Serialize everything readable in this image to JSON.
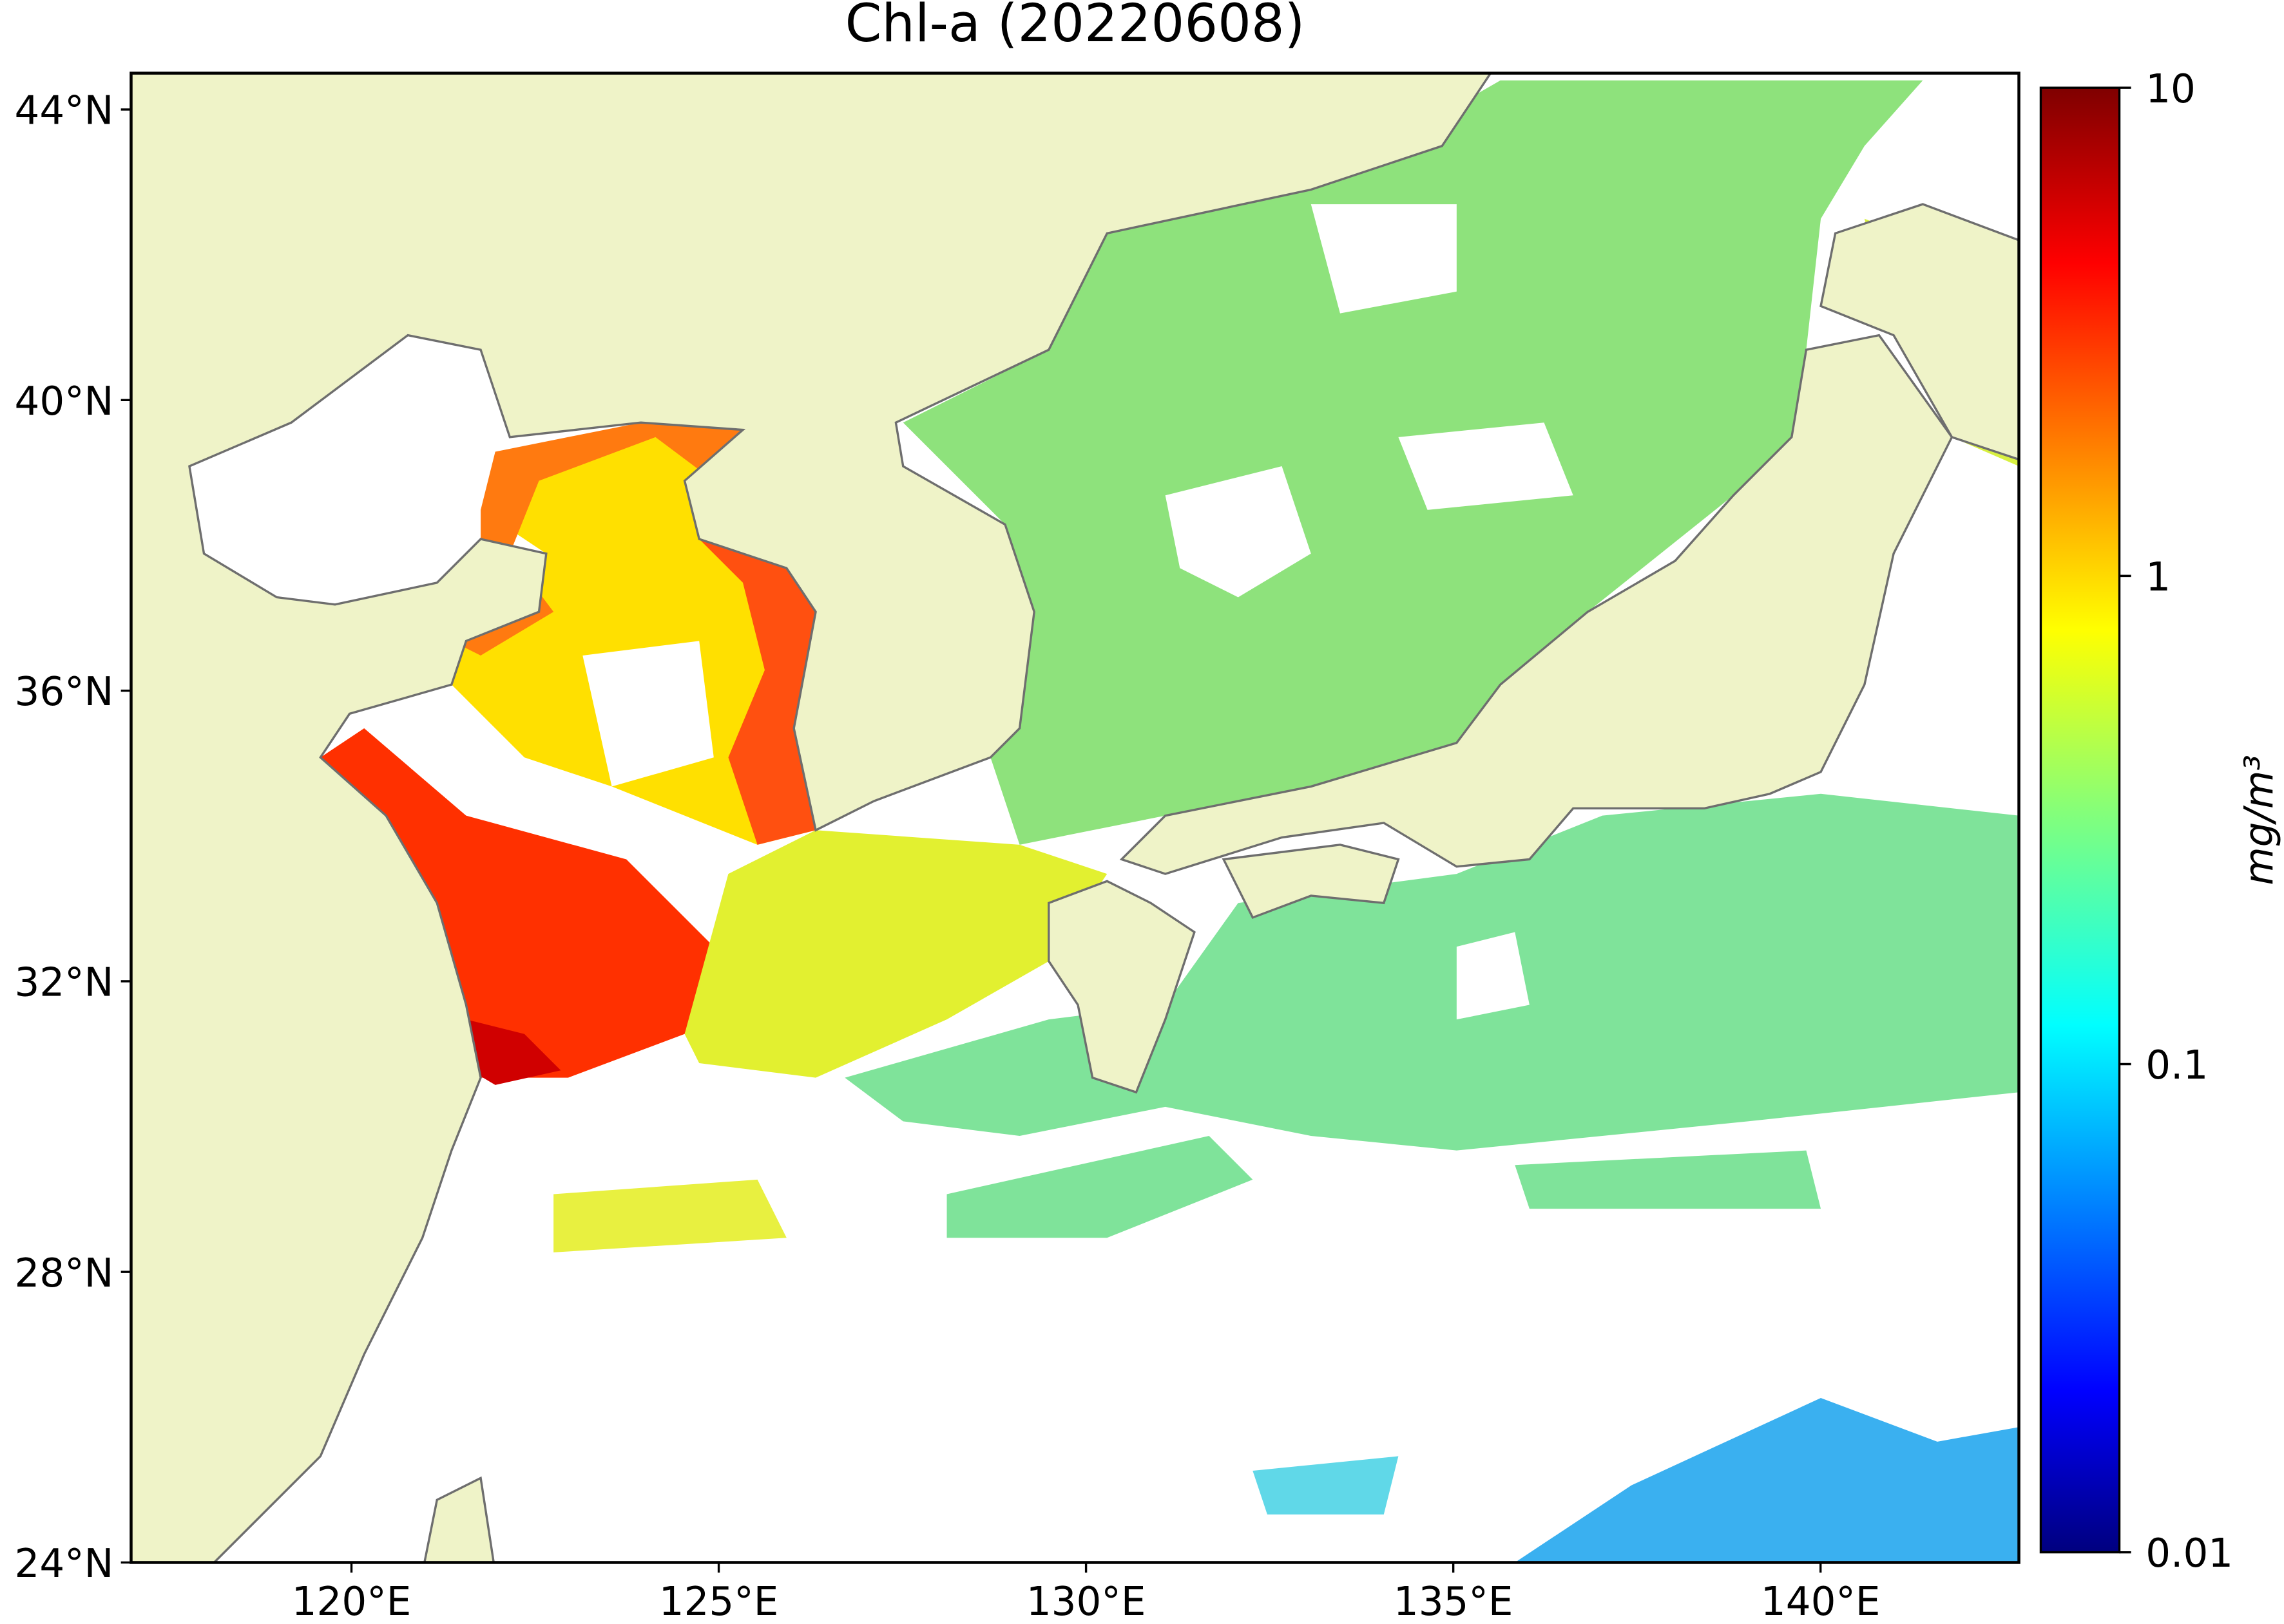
{
  "title": "Chl-a (20220608)",
  "map": {
    "xlim": [
      117,
      142.7
    ],
    "ylim": [
      24,
      44.5
    ],
    "xticks": [
      {
        "value": 120,
        "label": "120°E"
      },
      {
        "value": 125,
        "label": "125°E"
      },
      {
        "value": 130,
        "label": "130°E"
      },
      {
        "value": 135,
        "label": "135°E"
      },
      {
        "value": 140,
        "label": "140°E"
      }
    ],
    "yticks": [
      {
        "value": 24,
        "label": "24°N"
      },
      {
        "value": 28,
        "label": "28°N"
      },
      {
        "value": 32,
        "label": "32°N"
      },
      {
        "value": 36,
        "label": "36°N"
      },
      {
        "value": 40,
        "label": "40°N"
      },
      {
        "value": 44,
        "label": "44°N"
      }
    ]
  },
  "colorbar": {
    "label": "mg/m³",
    "scale": "log",
    "lim": [
      0.01,
      10
    ],
    "ticks": [
      0.01,
      0.1,
      1,
      10
    ],
    "colormap": "jet"
  }
}
